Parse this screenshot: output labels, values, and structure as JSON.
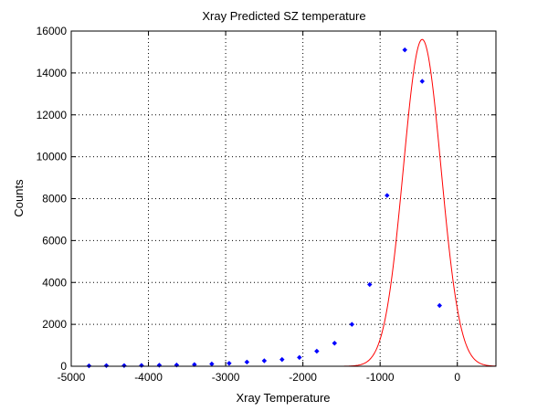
{
  "chart_data": {
    "type": "scatter",
    "title": "Xray Predicted SZ temperature",
    "xlabel": "Xray Temperature",
    "ylabel": "Counts",
    "xlim": [
      -5000,
      500
    ],
    "ylim": [
      0,
      16000
    ],
    "xticks": [
      "-5000",
      "-4000",
      "-3000",
      "-2000",
      "-1000",
      "0"
    ],
    "yticks": [
      "0",
      "2000",
      "4000",
      "6000",
      "8000",
      "10000",
      "12000",
      "14000",
      "16000"
    ],
    "grid": true,
    "series": [
      {
        "kind": "points",
        "color": "#0000ff",
        "marker": "diamond",
        "x": [
          -4770,
          -4545,
          -4315,
          -4090,
          -3860,
          -3635,
          -3405,
          -3180,
          -2955,
          -2725,
          -2500,
          -2270,
          -2045,
          -1820,
          -1590,
          -1365,
          -1135,
          -910,
          -680,
          -455,
          -230
        ],
        "y": [
          20,
          30,
          30,
          40,
          50,
          60,
          80,
          110,
          140,
          200,
          260,
          320,
          420,
          720,
          1100,
          2000,
          3900,
          8150,
          15100,
          13600,
          2900
        ]
      },
      {
        "kind": "curve",
        "color": "#ff0000",
        "model": "gaussian fit",
        "amplitude": 15600,
        "mean": -455,
        "sigma": 244,
        "x_range": [
          -5000,
          500
        ]
      }
    ]
  }
}
